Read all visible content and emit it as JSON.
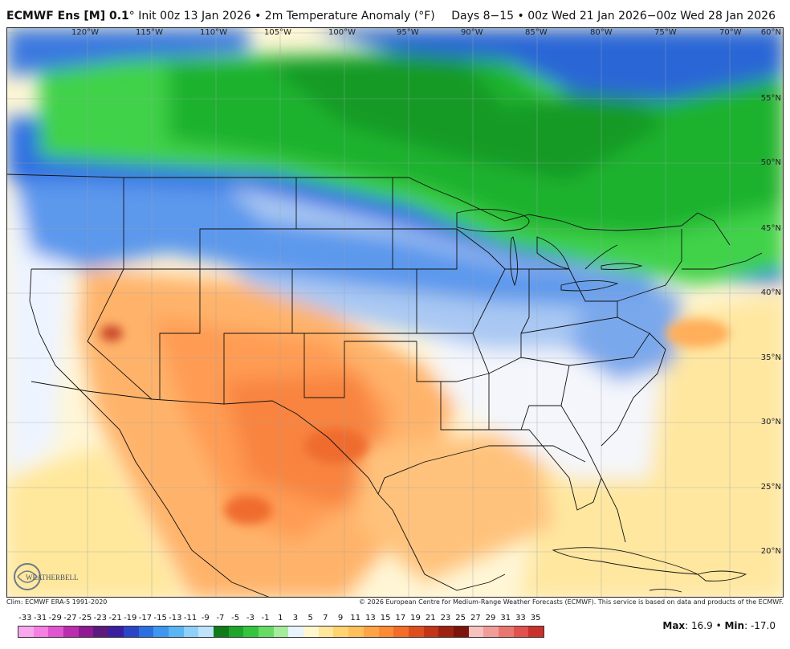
{
  "header": {
    "model": "ECMWF Ens [M] 0.1",
    "degree": "°",
    "init": "Init 00z 13 Jan 2026",
    "bullet": "•",
    "product": "2m Temperature Anomaly (°F)",
    "period_days": "Days 8−15",
    "valid": "00z Wed 21 Jan 2026−00z Wed 28 Jan 2026"
  },
  "lon_labels": [
    "120°W",
    "115°W",
    "110°W",
    "105°W",
    "100°W",
    "95°W",
    "90°W",
    "85°W",
    "80°W",
    "75°W",
    "70°W"
  ],
  "lat_labels": [
    "60°N",
    "55°N",
    "50°N",
    "45°N",
    "40°N",
    "35°N",
    "30°N",
    "25°N",
    "20°N"
  ],
  "footer": {
    "climo": "Clim: ECMWF ERA-5 1991-2020",
    "copyright": "© 2026 European Centre for Medium-Range Weather Forecasts (ECMWF). This service is based on data and products of the ECMWF."
  },
  "logo_text": "WEATHERBELL",
  "colorscale": {
    "labels": [
      "-33",
      "-31",
      "-29",
      "-27",
      "-25",
      "-23",
      "-21",
      "-19",
      "-17",
      "-15",
      "-13",
      "-11",
      "-9",
      "-7",
      "-5",
      "-3",
      "-1",
      "1",
      "3",
      "5",
      "7",
      "9",
      "11",
      "13",
      "15",
      "17",
      "19",
      "21",
      "23",
      "25",
      "27",
      "29",
      "31",
      "33",
      "35"
    ],
    "colors": [
      "#f9a8f0",
      "#f57fe3",
      "#e154d0",
      "#bb2cb0",
      "#8f1a93",
      "#5c1a7e",
      "#3a1fa0",
      "#2b45c8",
      "#2c6fe0",
      "#3d96ef",
      "#5ab5f5",
      "#8fd0f8",
      "#bfe3fa",
      "#117a19",
      "#1ea52a",
      "#35c43d",
      "#67dc64",
      "#a6ec9e",
      "#e8f4fb",
      "#fff7cf",
      "#ffe79b",
      "#ffd470",
      "#ffbf5b",
      "#ffa347",
      "#ff8a36",
      "#f36c28",
      "#de4f1d",
      "#c23516",
      "#9e2210",
      "#7d140b",
      "#f6c2c0",
      "#f29c98",
      "#ea7670",
      "#e0524d",
      "#c9312c"
    ]
  },
  "stats": {
    "max_label": "Max",
    "max_value": "16.9",
    "min_label": "Min",
    "min_value": "-17.0",
    "sep": "•"
  }
}
